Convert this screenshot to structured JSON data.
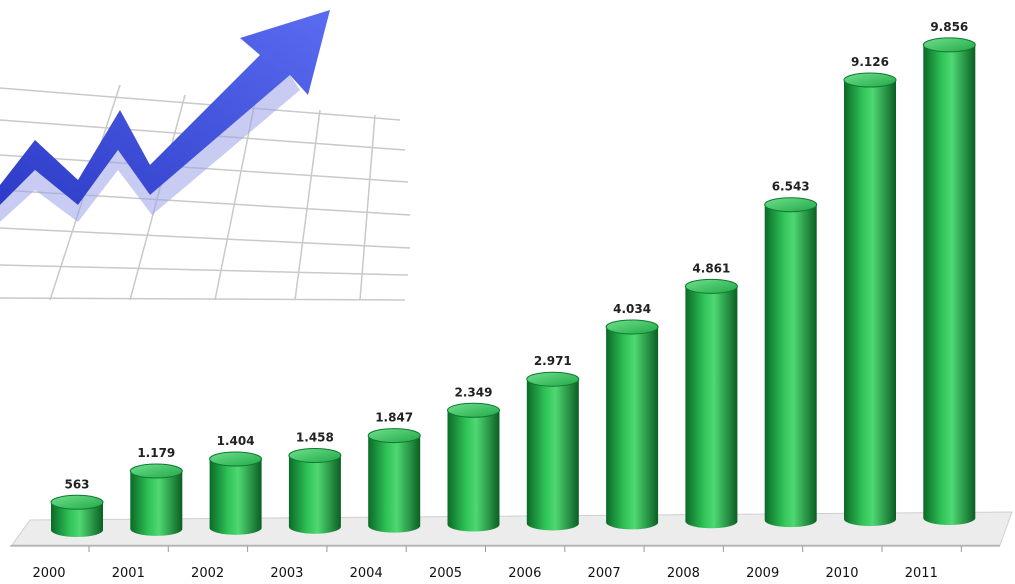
{
  "chart_data": {
    "type": "bar",
    "categories": [
      "2000",
      "2001",
      "2002",
      "2003",
      "2004",
      "2005",
      "2006",
      "2007",
      "2008",
      "2009",
      "2010",
      "2011"
    ],
    "values": [
      563,
      1179,
      1404,
      1458,
      1847,
      2349,
      2971,
      4034,
      4861,
      6543,
      9126,
      9856
    ],
    "value_labels": [
      "563",
      "1.179",
      "1.404",
      "1.458",
      "1.847",
      "2.349",
      "2.971",
      "4.034",
      "4.861",
      "6.543",
      "9.126",
      "9.856"
    ],
    "title": "",
    "xlabel": "",
    "ylabel": "",
    "ylim": [
      0,
      10000
    ],
    "grid": false,
    "legend": "none"
  },
  "colors": {
    "bar": "#1fa845",
    "bar_dark": "#0d6b2a",
    "bar_light": "#5fd37e",
    "floor": "#e9e9e9",
    "arrow": "#3d4fd6"
  },
  "decoration": {
    "icon": "rising-arrow-over-grid-icon"
  }
}
